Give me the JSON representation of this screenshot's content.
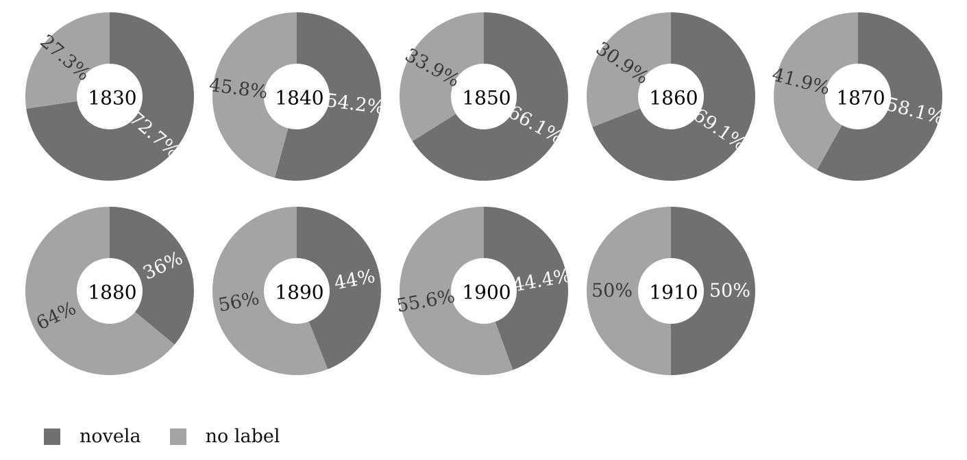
{
  "colors": {
    "novela": "#707070",
    "no_label": "#a4a4a4",
    "label_dark": "#3a3a3a",
    "label_light": "#ffffff"
  },
  "legend": [
    {
      "name": "novela",
      "color": "#707070"
    },
    {
      "name": "no label",
      "color": "#a4a4a4"
    }
  ],
  "chart_data": {
    "type": "donut",
    "series_names": [
      "novela",
      "no label"
    ],
    "charts": [
      {
        "title": "1830",
        "values": [
          72.7,
          27.3
        ],
        "labels": [
          "72.7%",
          "27.3%"
        ]
      },
      {
        "title": "1840",
        "values": [
          54.2,
          45.8
        ],
        "labels": [
          "54.2%",
          "45.8%"
        ]
      },
      {
        "title": "1850",
        "values": [
          66.1,
          33.9
        ],
        "labels": [
          "66.1%",
          "33.9%"
        ]
      },
      {
        "title": "1860",
        "values": [
          69.1,
          30.9
        ],
        "labels": [
          "69.1%",
          "30.9%"
        ]
      },
      {
        "title": "1870",
        "values": [
          58.1,
          41.9
        ],
        "labels": [
          "58.1%",
          "41.9%"
        ]
      },
      {
        "title": "1880",
        "values": [
          36,
          64
        ],
        "labels": [
          "36%",
          "64%"
        ]
      },
      {
        "title": "1890",
        "values": [
          44,
          56
        ],
        "labels": [
          "44%",
          "56%"
        ]
      },
      {
        "title": "1900",
        "values": [
          44.4,
          55.6
        ],
        "labels": [
          "44.4%",
          "55.6%"
        ]
      },
      {
        "title": "1910",
        "values": [
          50,
          50
        ],
        "labels": [
          "50%",
          "50%"
        ]
      }
    ]
  }
}
